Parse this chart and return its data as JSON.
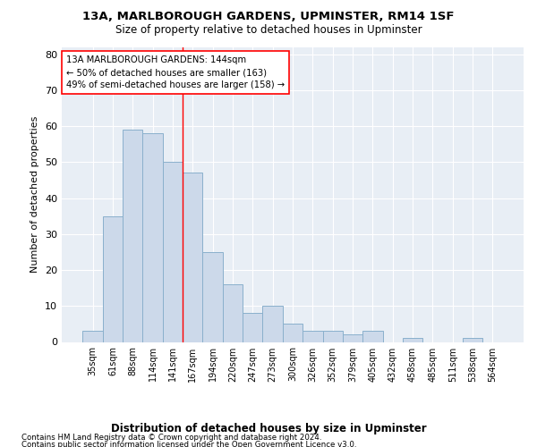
{
  "title": "13A, MARLBOROUGH GARDENS, UPMINSTER, RM14 1SF",
  "subtitle": "Size of property relative to detached houses in Upminster",
  "xlabel": "Distribution of detached houses by size in Upminster",
  "ylabel": "Number of detached properties",
  "bar_color": "#ccd9ea",
  "bar_edge_color": "#8ab0cc",
  "bg_color": "#e8eef5",
  "grid_color": "#ffffff",
  "categories": [
    "35sqm",
    "61sqm",
    "88sqm",
    "114sqm",
    "141sqm",
    "167sqm",
    "194sqm",
    "220sqm",
    "247sqm",
    "273sqm",
    "300sqm",
    "326sqm",
    "352sqm",
    "379sqm",
    "405sqm",
    "432sqm",
    "458sqm",
    "485sqm",
    "511sqm",
    "538sqm",
    "564sqm"
  ],
  "values": [
    3,
    35,
    59,
    58,
    50,
    47,
    25,
    16,
    8,
    10,
    5,
    3,
    3,
    2,
    3,
    0,
    1,
    0,
    0,
    1,
    0
  ],
  "ylim": [
    0,
    82
  ],
  "yticks": [
    0,
    10,
    20,
    30,
    40,
    50,
    60,
    70,
    80
  ],
  "red_line_x": 4.5,
  "annotation_box_text": "13A MARLBOROUGH GARDENS: 144sqm\n← 50% of detached houses are smaller (163)\n49% of semi-detached houses are larger (158) →",
  "footnote1": "Contains HM Land Registry data © Crown copyright and database right 2024.",
  "footnote2": "Contains public sector information licensed under the Open Government Licence v3.0."
}
